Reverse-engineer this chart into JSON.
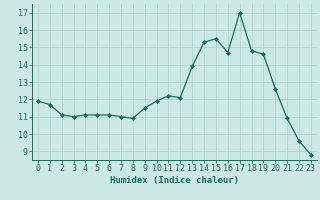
{
  "x": [
    0,
    1,
    2,
    3,
    4,
    5,
    6,
    7,
    8,
    9,
    10,
    11,
    12,
    13,
    14,
    15,
    16,
    17,
    18,
    19,
    20,
    21,
    22,
    23
  ],
  "y": [
    11.9,
    11.7,
    11.1,
    11.0,
    11.1,
    11.1,
    11.1,
    11.0,
    10.9,
    11.5,
    11.9,
    12.2,
    12.1,
    13.9,
    15.3,
    15.5,
    14.7,
    17.0,
    14.8,
    14.6,
    12.6,
    10.9,
    9.6,
    8.8
  ],
  "line_color": "#1a6b5e",
  "marker": "D",
  "marker_size": 2.0,
  "bg_color": "#cce8e4",
  "grid_color": "#afd4ce",
  "xlabel": "Humidex (Indice chaleur)",
  "xlim": [
    -0.5,
    23.5
  ],
  "ylim": [
    8.5,
    17.5
  ],
  "yticks": [
    9,
    10,
    11,
    12,
    13,
    14,
    15,
    16,
    17
  ],
  "xticks": [
    0,
    1,
    2,
    3,
    4,
    5,
    6,
    7,
    8,
    9,
    10,
    11,
    12,
    13,
    14,
    15,
    16,
    17,
    18,
    19,
    20,
    21,
    22,
    23
  ],
  "label_fontsize": 6.5,
  "tick_fontsize": 6.0
}
